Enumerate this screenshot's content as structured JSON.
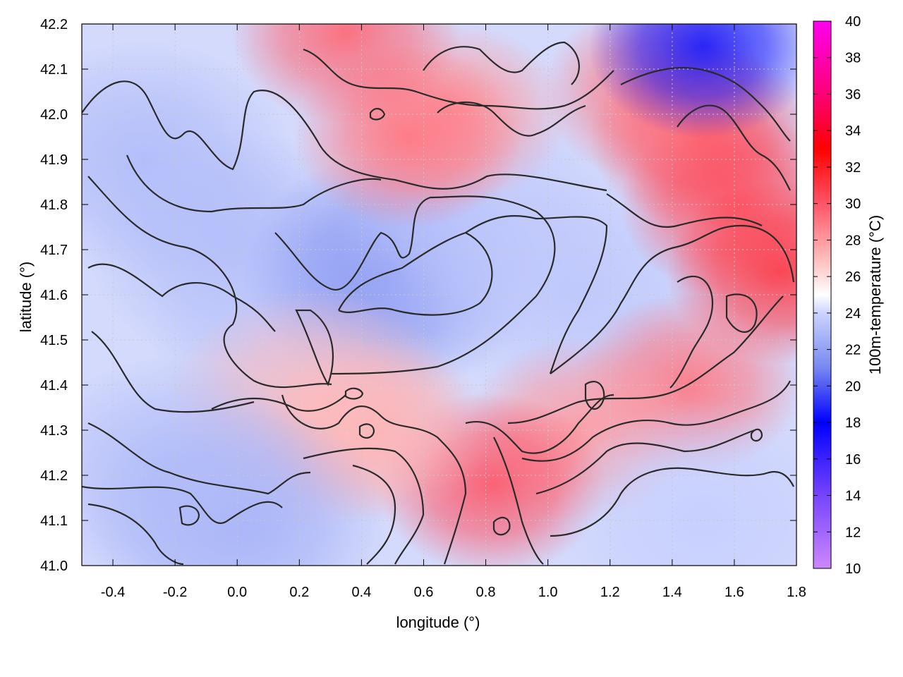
{
  "chart_data": {
    "type": "heatmap",
    "title": "",
    "xlabel": "longitude (°)",
    "ylabel": "latitude (°)",
    "colorbar_label": "100m-temperature (°C)",
    "xlim": [
      -0.5,
      1.8
    ],
    "ylim": [
      41.0,
      42.2
    ],
    "clim": [
      10,
      40
    ],
    "x_ticks": [
      -0.4,
      -0.2,
      0.0,
      0.2,
      0.4,
      0.6,
      0.8,
      1.0,
      1.2,
      1.4,
      1.6,
      1.8
    ],
    "x_tick_labels": [
      "-0.4",
      "-0.2",
      "0.0",
      "0.2",
      "0.4",
      "0.6",
      "0.8",
      "1.0",
      "1.2",
      "1.4",
      "1.6",
      "1.8"
    ],
    "y_ticks": [
      41.0,
      41.1,
      41.2,
      41.3,
      41.4,
      41.5,
      41.6,
      41.7,
      41.8,
      41.9,
      42.0,
      42.1,
      42.2
    ],
    "y_tick_labels": [
      "41.0",
      "41.1",
      "41.2",
      "41.3",
      "41.4",
      "41.5",
      "41.6",
      "41.7",
      "41.8",
      "41.9",
      "42.0",
      "42.1",
      "42.2"
    ],
    "colorbar_ticks": [
      10,
      12,
      14,
      16,
      18,
      20,
      22,
      24,
      26,
      28,
      30,
      32,
      34,
      36,
      38,
      40
    ],
    "colorbar_tick_labels": [
      "10",
      "12",
      "14",
      "16",
      "18",
      "20",
      "22",
      "24",
      "26",
      "28",
      "30",
      "32",
      "34",
      "36",
      "38",
      "40"
    ],
    "colormap_stops": [
      {
        "value": 10,
        "color": "#cc88ff"
      },
      {
        "value": 14,
        "color": "#7744ff"
      },
      {
        "value": 18,
        "color": "#0000ff"
      },
      {
        "value": 21,
        "color": "#7788ee"
      },
      {
        "value": 24,
        "color": "#ccd4ff"
      },
      {
        "value": 25,
        "color": "#ffffff"
      },
      {
        "value": 27,
        "color": "#ffbbbb"
      },
      {
        "value": 30,
        "color": "#ff5566"
      },
      {
        "value": 33,
        "color": "#ff0000"
      },
      {
        "value": 36,
        "color": "#ff0077"
      },
      {
        "value": 40,
        "color": "#ff00ee"
      }
    ],
    "grid": true,
    "grid_color": "#c8c8c8",
    "contour_color": "#2a2a2a",
    "temperature_samples": [
      {
        "lon": -0.3,
        "lat": 41.9,
        "value": 23.0
      },
      {
        "lon": 0.0,
        "lat": 41.7,
        "value": 23.0
      },
      {
        "lon": 0.2,
        "lat": 41.5,
        "value": 23.5
      },
      {
        "lon": 0.5,
        "lat": 41.65,
        "value": 21.5
      },
      {
        "lon": 0.8,
        "lat": 41.75,
        "value": 23.5
      },
      {
        "lon": 1.1,
        "lat": 41.6,
        "value": 23.5
      },
      {
        "lon": 1.6,
        "lat": 41.8,
        "value": 30.0
      },
      {
        "lon": 1.5,
        "lat": 41.95,
        "value": 30.5
      },
      {
        "lon": 1.35,
        "lat": 42.05,
        "value": 29.0
      },
      {
        "lon": 0.7,
        "lat": 42.0,
        "value": 28.0
      },
      {
        "lon": 0.55,
        "lat": 41.95,
        "value": 29.0
      },
      {
        "lon": 0.35,
        "lat": 42.18,
        "value": 29.5
      },
      {
        "lon": 1.5,
        "lat": 42.15,
        "value": 18.5
      },
      {
        "lon": 1.75,
        "lat": 41.65,
        "value": 31.0
      },
      {
        "lon": 1.45,
        "lat": 41.4,
        "value": 29.0
      },
      {
        "lon": 1.1,
        "lat": 41.3,
        "value": 28.0
      },
      {
        "lon": 0.82,
        "lat": 41.18,
        "value": 30.0
      },
      {
        "lon": 0.45,
        "lat": 41.3,
        "value": 27.5
      },
      {
        "lon": 0.25,
        "lat": 41.35,
        "value": 27.0
      },
      {
        "lon": 1.5,
        "lat": 41.1,
        "value": 23.8
      },
      {
        "lon": 0.0,
        "lat": 41.1,
        "value": 22.5
      },
      {
        "lon": -0.2,
        "lat": 41.2,
        "value": 23.0
      }
    ]
  }
}
